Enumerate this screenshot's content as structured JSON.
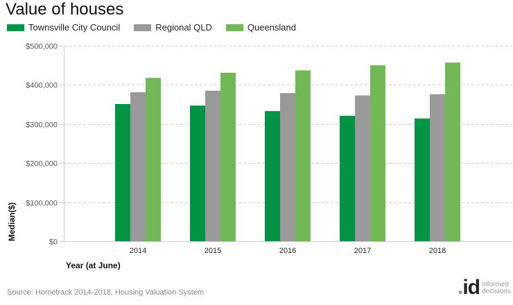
{
  "chart_data": {
    "type": "bar",
    "title": "Value of houses",
    "xlabel": "Year (at June)",
    "ylabel": "Median($)",
    "categories": [
      "2014",
      "2015",
      "2016",
      "2017",
      "2018"
    ],
    "series": [
      {
        "name": "Townsville City Council",
        "color": "#009444",
        "values": [
          351000,
          347000,
          333000,
          321000,
          314000
        ]
      },
      {
        "name": "Regional QLD",
        "color": "#999999",
        "values": [
          381000,
          385000,
          379000,
          373000,
          376000
        ]
      },
      {
        "name": "Queensland",
        "color": "#72b857",
        "values": [
          418000,
          431000,
          437000,
          450000,
          457000
        ]
      }
    ],
    "ylim": [
      0,
      500000
    ],
    "yticks": [
      0,
      100000,
      200000,
      300000,
      400000,
      500000
    ],
    "ytick_labels": [
      "$0",
      "$100,000",
      "$200,000",
      "$300,000",
      "$400,000",
      "$500,000"
    ],
    "grid": true,
    "legend_position": "top-left"
  },
  "footer": {
    "source": "Source: Hometrack 2014-2018, Housing Valuation System",
    "logo_mark": "id",
    "logo_line1": "informed",
    "logo_line2": "decisions"
  }
}
